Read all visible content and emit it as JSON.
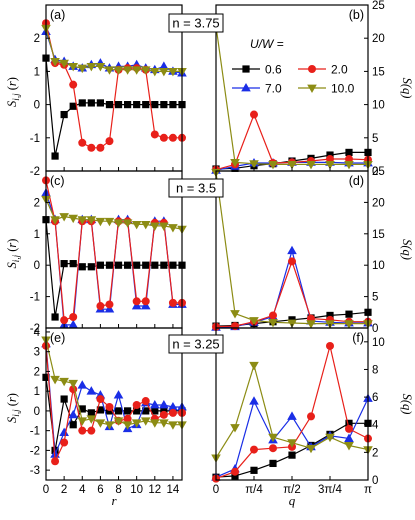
{
  "chart_data": [
    {
      "type": "line",
      "panel_label": "(a)",
      "annotation": "n = 3.75",
      "ylabel": "S_{i,j} (r)",
      "xlabel": "",
      "xlim": [
        0,
        15
      ],
      "ylim": [
        -2,
        3
      ],
      "x_ticks": [
        0,
        2,
        4,
        6,
        8,
        10,
        12,
        14
      ],
      "y_ticks": [
        -2,
        -1,
        0,
        1,
        2
      ],
      "series": [
        {
          "name": "0.6",
          "x": [
            0,
            1,
            2,
            3,
            4,
            5,
            6,
            7,
            8,
            9,
            10,
            11,
            12,
            13,
            14,
            15
          ],
          "values": [
            1.4,
            -1.55,
            -0.3,
            -0.05,
            0.05,
            0.05,
            0.05,
            0,
            0,
            0,
            0,
            0,
            0,
            0,
            0,
            0
          ]
        },
        {
          "name": "2.0",
          "x": [
            0,
            1,
            2,
            3,
            4,
            5,
            6,
            7,
            8,
            9,
            10,
            11,
            12,
            13,
            14,
            15
          ],
          "values": [
            2.45,
            1.25,
            1.2,
            0.6,
            -1.15,
            -1.3,
            -1.3,
            -1.1,
            1.05,
            1.1,
            1.1,
            1.05,
            -0.9,
            -1.0,
            -1.0,
            -1.0
          ]
        },
        {
          "name": "7.0",
          "x": [
            0,
            1,
            2,
            3,
            4,
            5,
            6,
            7,
            8,
            9,
            10,
            11,
            12,
            13,
            14,
            15
          ],
          "values": [
            2.2,
            1.35,
            1.3,
            1.15,
            1.1,
            1.2,
            1.25,
            1.1,
            1.15,
            1.15,
            1.2,
            1.1,
            1.05,
            1.15,
            1.0,
            0.95
          ]
        },
        {
          "name": "10.0",
          "x": [
            0,
            1,
            2,
            3,
            4,
            5,
            6,
            7,
            8,
            9,
            10,
            11,
            12,
            13,
            14,
            15
          ],
          "values": [
            2.3,
            1.3,
            1.25,
            1.15,
            1.1,
            1.15,
            1.15,
            1.05,
            1.05,
            1.05,
            1.05,
            1.05,
            1.0,
            1.0,
            1.0,
            1.0
          ]
        }
      ]
    },
    {
      "type": "line",
      "panel_label": "(b)",
      "ylabel": "S(q)",
      "xlabel": "",
      "xlim": [
        0,
        3.14159
      ],
      "ylim": [
        0,
        25
      ],
      "y_ticks": [
        0,
        5,
        10,
        15,
        20,
        25
      ],
      "legend_title": "U/W =",
      "legend_position": "top",
      "series": [
        {
          "name": "0.6",
          "x": [
            0,
            0.3927,
            0.7854,
            1.1781,
            1.5708,
            1.9635,
            2.3562,
            2.7489,
            3.1416
          ],
          "values": [
            0.3,
            0.4,
            0.8,
            1.1,
            1.5,
            1.9,
            2.4,
            2.8,
            2.8
          ]
        },
        {
          "name": "2.0",
          "x": [
            0,
            0.3927,
            0.7854,
            1.1781,
            1.5708,
            1.9635,
            2.3562,
            2.7489,
            3.1416
          ],
          "values": [
            0.2,
            1.0,
            8.5,
            1.2,
            1.3,
            1.5,
            1.8,
            1.8,
            1.7
          ]
        },
        {
          "name": "7.0",
          "x": [
            0,
            0.3927,
            0.7854,
            1.1781,
            1.5708,
            1.9635,
            2.3562,
            2.7489,
            3.1416
          ],
          "values": [
            0.1,
            0.7,
            1.2,
            1.2,
            1.3,
            1.3,
            1.3,
            1.2,
            1.2
          ]
        },
        {
          "name": "10.0",
          "x": [
            0,
            0.3927,
            0.7854,
            1.1781,
            1.5708,
            1.9635,
            2.3562,
            2.7489,
            3.1416
          ],
          "values": [
            21.8,
            1.3,
            1.1,
            1.0,
            1.0,
            1.0,
            1.0,
            1.0,
            1.0
          ]
        }
      ]
    },
    {
      "type": "line",
      "panel_label": "(c)",
      "annotation": "n = 3.5",
      "ylabel": "S_{i,j} (r)",
      "xlabel": "",
      "xlim": [
        0,
        15
      ],
      "ylim": [
        -2,
        3
      ],
      "x_ticks": [
        0,
        2,
        4,
        6,
        8,
        10,
        12,
        14
      ],
      "y_ticks": [
        -2,
        -1,
        0,
        1,
        2
      ],
      "series": [
        {
          "name": "0.6",
          "x": [
            0,
            1,
            2,
            3,
            4,
            5,
            6,
            7,
            8,
            9,
            10,
            11,
            12,
            13,
            14,
            15
          ],
          "values": [
            1.45,
            -1.65,
            0.05,
            0.05,
            -0.05,
            -0.05,
            0,
            0,
            0,
            0,
            0,
            0,
            0,
            0,
            0,
            0
          ]
        },
        {
          "name": "2.0",
          "x": [
            0,
            1,
            2,
            3,
            4,
            5,
            6,
            7,
            8,
            9,
            10,
            11,
            12,
            13,
            14,
            15
          ],
          "values": [
            2.7,
            1.4,
            -1.75,
            -1.65,
            1.4,
            1.4,
            -1.3,
            -1.25,
            1.4,
            1.4,
            -1.15,
            -1.15,
            1.35,
            1.35,
            -1.2,
            -1.2
          ]
        },
        {
          "name": "7.0",
          "x": [
            0,
            1,
            2,
            3,
            4,
            5,
            6,
            7,
            8,
            9,
            10,
            11,
            12,
            13,
            14,
            15
          ],
          "values": [
            2.3,
            1.45,
            -1.9,
            -1.9,
            1.45,
            1.45,
            -1.4,
            -1.4,
            1.45,
            1.45,
            -1.3,
            -1.3,
            1.4,
            1.4,
            -1.25,
            -1.25
          ]
        },
        {
          "name": "10.0",
          "x": [
            0,
            1,
            2,
            3,
            4,
            5,
            6,
            7,
            8,
            9,
            10,
            11,
            12,
            13,
            14,
            15
          ],
          "values": [
            2.1,
            1.45,
            1.55,
            1.5,
            1.45,
            1.45,
            1.4,
            1.4,
            1.35,
            1.35,
            1.3,
            1.3,
            1.25,
            1.25,
            1.2,
            1.15
          ]
        }
      ]
    },
    {
      "type": "line",
      "panel_label": "(d)",
      "ylabel": "S(q)",
      "xlabel": "",
      "xlim": [
        0,
        3.14159
      ],
      "ylim": [
        0,
        25
      ],
      "y_ticks": [
        0,
        5,
        10,
        15,
        20,
        25
      ],
      "series": [
        {
          "name": "0.6",
          "x": [
            0,
            0.3927,
            0.7854,
            1.1781,
            1.5708,
            1.9635,
            2.3562,
            2.7489,
            3.1416
          ],
          "values": [
            0.3,
            0.4,
            0.7,
            1.0,
            1.3,
            1.6,
            2.0,
            2.2,
            2.5
          ]
        },
        {
          "name": "2.0",
          "x": [
            0,
            0.3927,
            0.7854,
            1.1781,
            1.5708,
            1.9635,
            2.3562,
            2.7489,
            3.1416
          ],
          "values": [
            0.2,
            0.3,
            1.0,
            2.0,
            10.6,
            1.5,
            1.3,
            1.0,
            1.0
          ]
        },
        {
          "name": "7.0",
          "x": [
            0,
            0.3927,
            0.7854,
            1.1781,
            1.5708,
            1.9635,
            2.3562,
            2.7489,
            3.1416
          ],
          "values": [
            0.1,
            0.2,
            0.9,
            1.8,
            12.3,
            1.1,
            0.9,
            0.8,
            0.8
          ]
        },
        {
          "name": "10.0",
          "x": [
            0,
            0.3927,
            0.7854,
            1.1781,
            1.5708,
            1.9635,
            2.3562,
            2.7489,
            3.1416
          ],
          "values": [
            24.8,
            2.3,
            1.2,
            0.9,
            0.8,
            0.7,
            0.7,
            0.7,
            0.7
          ]
        }
      ]
    },
    {
      "type": "line",
      "panel_label": "(e)",
      "annotation": "n = 3.25",
      "ylabel": "S_{i,j} (r)",
      "xlabel": "r",
      "xlim": [
        0,
        15
      ],
      "ylim": [
        -3.5,
        4.2
      ],
      "x_ticks": [
        0,
        2,
        4,
        6,
        8,
        10,
        12,
        14
      ],
      "y_ticks": [
        -3,
        -2,
        -1,
        0,
        1,
        2,
        3,
        4
      ],
      "series": [
        {
          "name": "0.6",
          "x": [
            0,
            1,
            2,
            3,
            4,
            5,
            6,
            7,
            8,
            9,
            10,
            11,
            12,
            13,
            14,
            15
          ],
          "values": [
            1.7,
            -2.0,
            0.6,
            -0.7,
            0.1,
            -0.1,
            0.05,
            0,
            0,
            0,
            0,
            0,
            0,
            0,
            0,
            0
          ]
        },
        {
          "name": "2.0",
          "x": [
            0,
            1,
            2,
            3,
            4,
            5,
            6,
            7,
            8,
            9,
            10,
            11,
            12,
            13,
            14,
            15
          ],
          "values": [
            3.3,
            -2.55,
            -1.6,
            1.1,
            -1.0,
            -1.0,
            0.6,
            0.2,
            -0.5,
            -0.4,
            0.3,
            0.5,
            -0.4,
            -0.2,
            -0.1,
            -0.1
          ]
        },
        {
          "name": "7.0",
          "x": [
            0,
            1,
            2,
            3,
            4,
            5,
            6,
            7,
            8,
            9,
            10,
            11,
            12,
            13,
            14,
            15
          ],
          "values": [
            3.4,
            -2.2,
            -1.1,
            -0.2,
            1.3,
            1.0,
            0.8,
            -0.8,
            0.8,
            -0.9,
            -0.7,
            0.4,
            0.3,
            0.3,
            0.2,
            0.2
          ]
        },
        {
          "name": "10.0",
          "x": [
            0,
            1,
            2,
            3,
            4,
            5,
            6,
            7,
            8,
            9,
            10,
            11,
            12,
            13,
            14,
            15
          ],
          "values": [
            3.6,
            1.6,
            1.5,
            1.4,
            -0.5,
            -0.4,
            -0.6,
            -0.7,
            -0.5,
            -0.7,
            -0.6,
            -0.5,
            -0.6,
            -0.6,
            -0.7,
            -0.7
          ]
        }
      ]
    },
    {
      "type": "line",
      "panel_label": "(f)",
      "ylabel": "S(q)",
      "xlabel": "q",
      "xlim": [
        0,
        3.14159
      ],
      "ylim": [
        0,
        11
      ],
      "y_ticks": [
        0,
        2,
        4,
        6,
        8,
        10
      ],
      "x_tick_labels": [
        "0",
        "π/4",
        "π/2",
        "3π/4",
        "π"
      ],
      "series": [
        {
          "name": "0.6",
          "x": [
            0,
            0.3927,
            0.7854,
            1.1781,
            1.5708,
            1.9635,
            2.3562,
            2.7489,
            3.1416
          ],
          "values": [
            0.2,
            0.3,
            0.7,
            1.2,
            1.8,
            2.5,
            3.3,
            4.1,
            4.1
          ]
        },
        {
          "name": "2.0",
          "x": [
            0,
            0.3927,
            0.7854,
            1.1781,
            1.5708,
            1.9635,
            2.3562,
            2.7489,
            3.1416
          ],
          "values": [
            0.1,
            0.6,
            2.2,
            2.3,
            2.4,
            4.6,
            9.7,
            3.7,
            3.0
          ]
        },
        {
          "name": "7.0",
          "x": [
            0,
            0.3927,
            0.7854,
            1.1781,
            1.5708,
            1.9635,
            2.3562,
            2.7489,
            3.1416
          ],
          "values": [
            0.2,
            0.8,
            5.7,
            2.9,
            4.6,
            2.4,
            3.2,
            3.0,
            5.9
          ]
        },
        {
          "name": "10.0",
          "x": [
            0,
            0.3927,
            0.7854,
            1.1781,
            1.5708,
            1.9635,
            2.3562,
            2.7489,
            3.1416
          ],
          "values": [
            1.6,
            3.8,
            8.3,
            3.1,
            2.7,
            2.3,
            3.1,
            2.5,
            2.2
          ]
        }
      ]
    }
  ],
  "colors": {
    "0.6": "#000000",
    "2.0": "#e8201a",
    "7.0": "#1a2ee6",
    "10.0": "#8c8c14"
  },
  "markers": {
    "0.6": "square",
    "2.0": "circle",
    "7.0": "triangle-up",
    "10.0": "triangle-down"
  }
}
